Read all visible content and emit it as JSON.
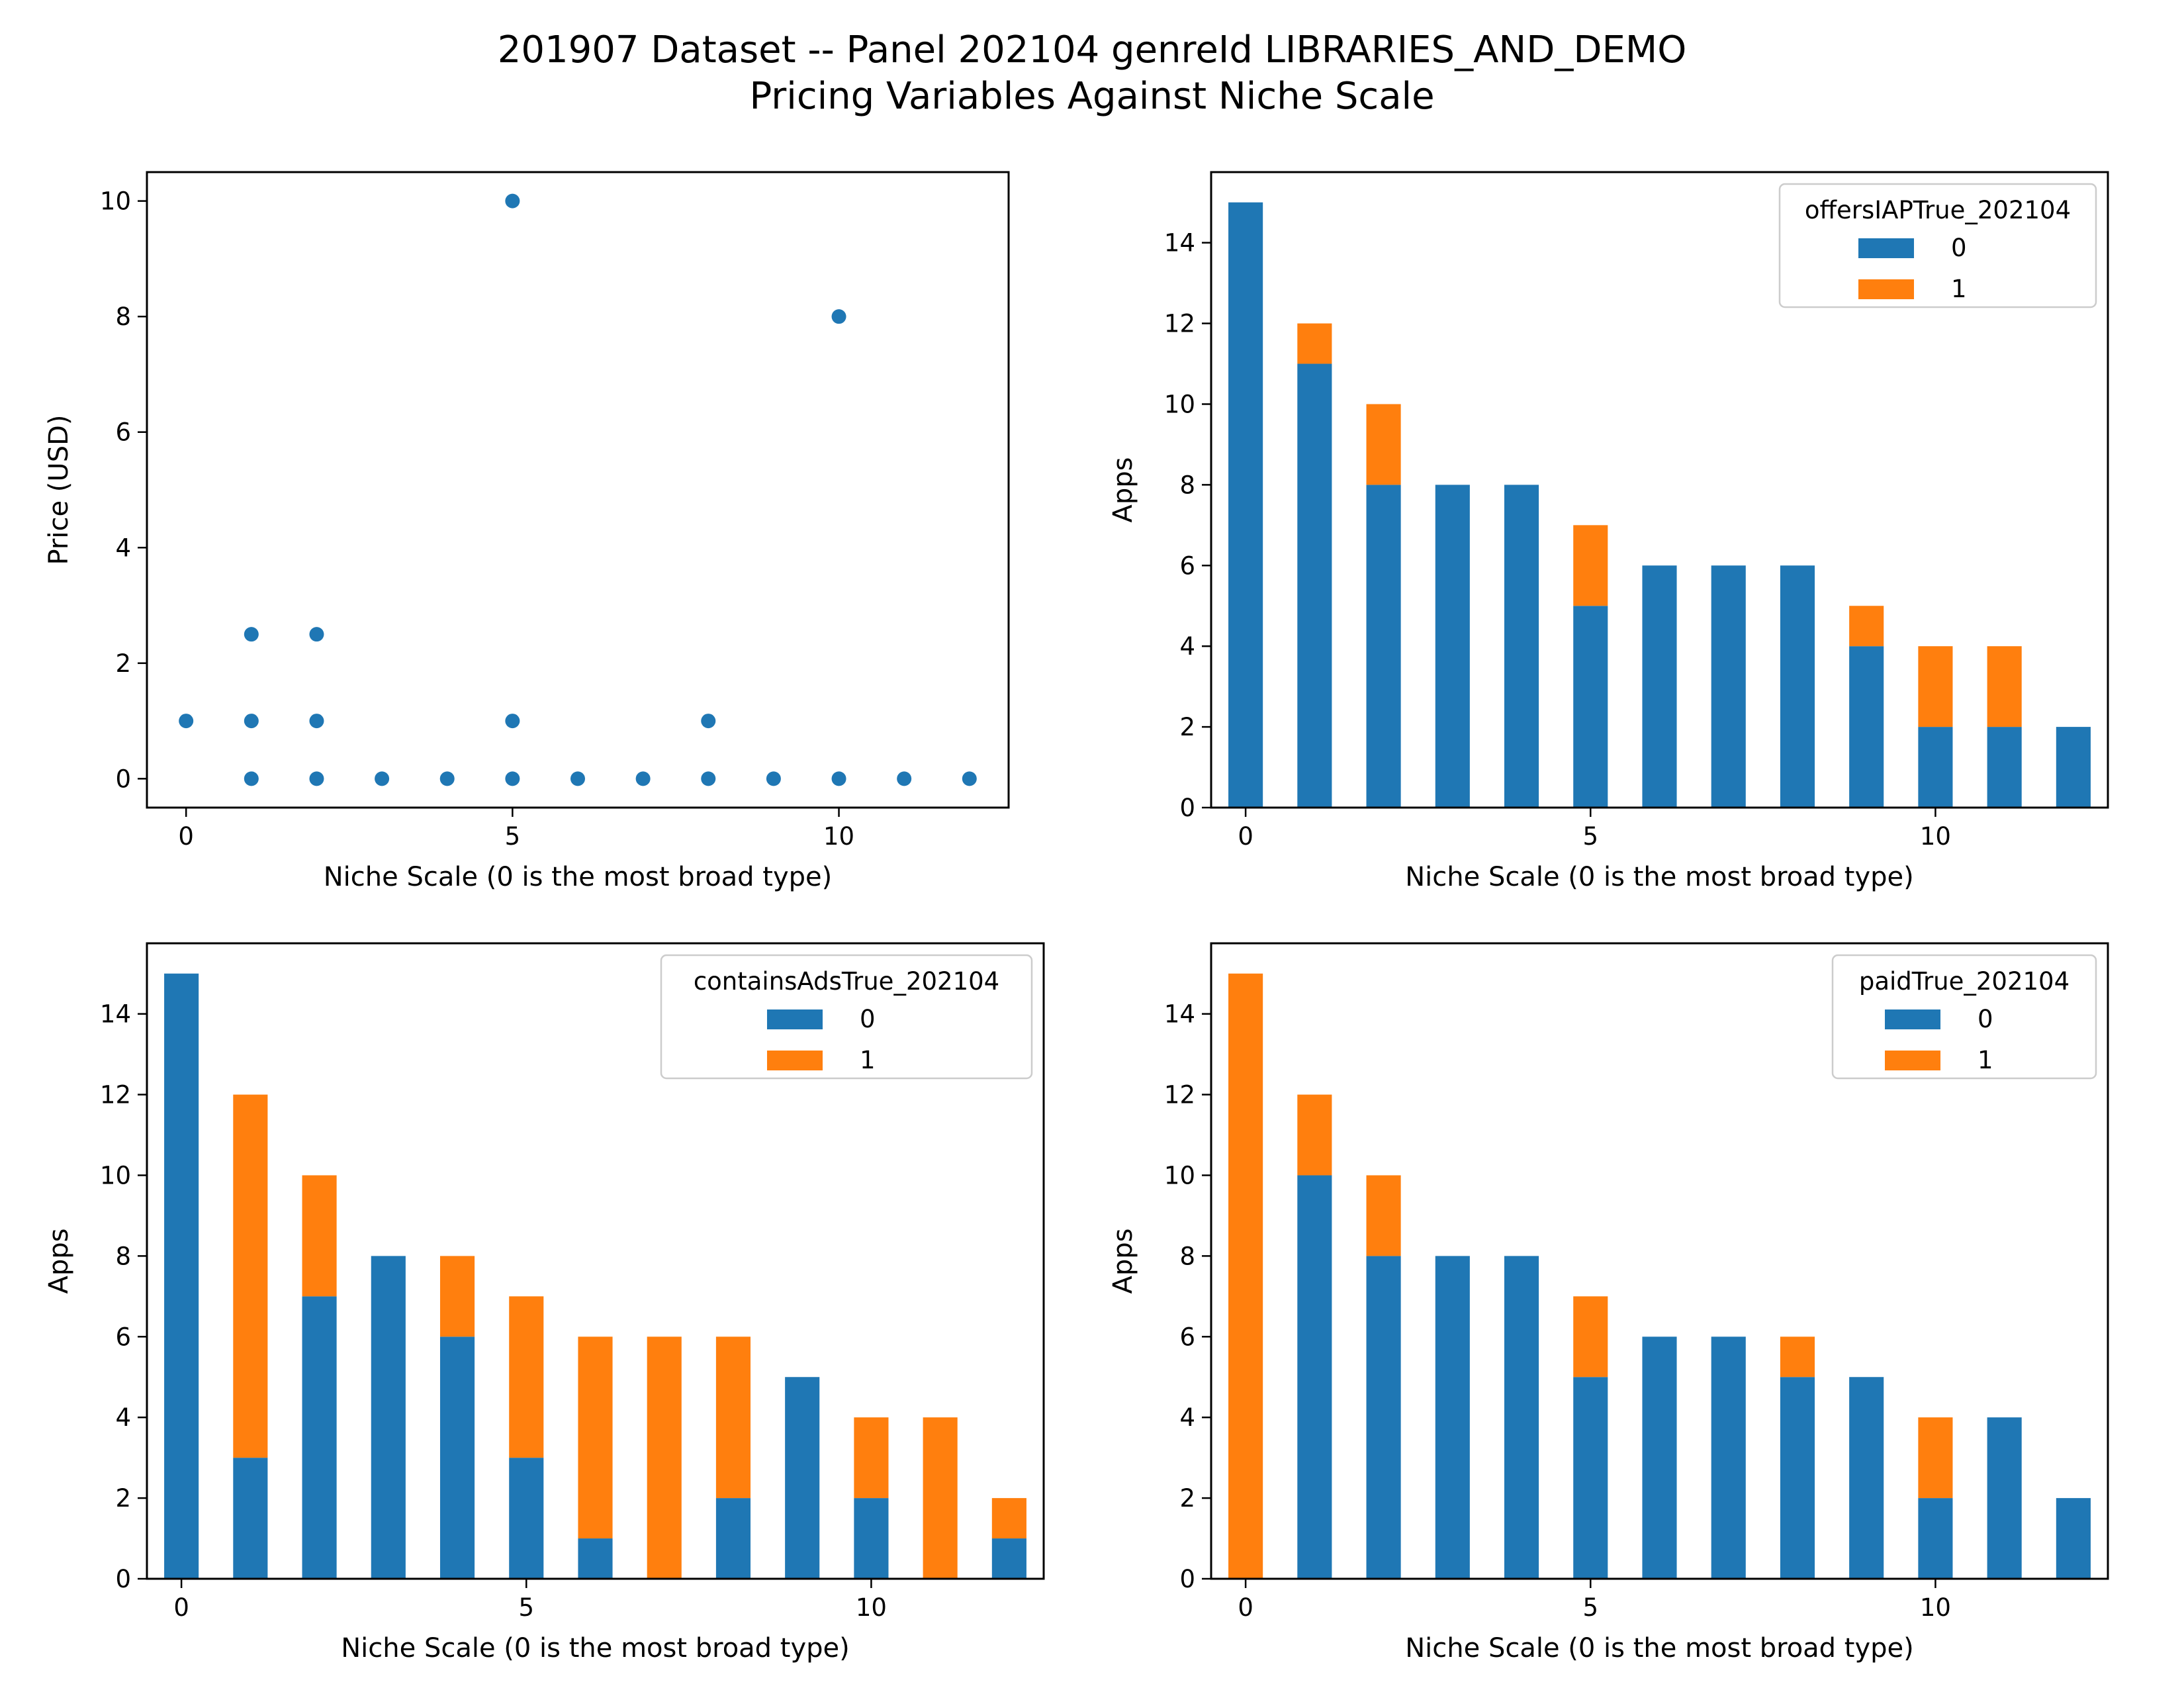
{
  "figure": {
    "title_line1": "201907 Dataset -- Panel 202104 genreId LIBRARIES_AND_DEMO",
    "title_line2": "Pricing Variables Against Niche Scale"
  },
  "colors": {
    "series0": "#1f77b4",
    "series1": "#ff7f0e"
  },
  "chart_data": [
    {
      "type": "scatter",
      "xlabel": "Niche Scale (0 is the most broad type)",
      "ylabel": "Price (USD)",
      "xlim": [
        -0.6,
        12.6
      ],
      "ylim": [
        -0.5,
        10.5
      ],
      "xticks": [
        0,
        5,
        10
      ],
      "yticks": [
        0,
        2,
        4,
        6,
        8,
        10
      ],
      "points": [
        {
          "x": 0,
          "y": 1
        },
        {
          "x": 1,
          "y": 2.5
        },
        {
          "x": 1,
          "y": 1
        },
        {
          "x": 1,
          "y": 0
        },
        {
          "x": 2,
          "y": 2.5
        },
        {
          "x": 2,
          "y": 1
        },
        {
          "x": 2,
          "y": 0
        },
        {
          "x": 3,
          "y": 0
        },
        {
          "x": 4,
          "y": 0
        },
        {
          "x": 5,
          "y": 10
        },
        {
          "x": 5,
          "y": 1
        },
        {
          "x": 5,
          "y": 0
        },
        {
          "x": 6,
          "y": 0
        },
        {
          "x": 7,
          "y": 0
        },
        {
          "x": 8,
          "y": 1
        },
        {
          "x": 8,
          "y": 0
        },
        {
          "x": 9,
          "y": 0
        },
        {
          "x": 10,
          "y": 8
        },
        {
          "x": 10,
          "y": 0
        },
        {
          "x": 11,
          "y": 0
        },
        {
          "x": 12,
          "y": 0
        }
      ]
    },
    {
      "type": "bar",
      "stacked": true,
      "xlabel": "Niche Scale (0 is the most broad type)",
      "ylabel": "Apps",
      "xlim": [
        -0.5,
        12.5
      ],
      "ylim": [
        0,
        15.75
      ],
      "xticks": [
        0,
        5,
        10
      ],
      "yticks": [
        0,
        2,
        4,
        6,
        8,
        10,
        12,
        14
      ],
      "categories": [
        0,
        1,
        2,
        3,
        4,
        5,
        6,
        7,
        8,
        9,
        10,
        11,
        12
      ],
      "legend_title": "offersIAPTrue_202104",
      "legend_loc": "upper right",
      "series": [
        {
          "name": "0",
          "values": [
            15,
            11,
            8,
            8,
            8,
            5,
            6,
            6,
            6,
            4,
            2,
            2,
            2
          ]
        },
        {
          "name": "1",
          "values": [
            0,
            1,
            2,
            0,
            0,
            2,
            0,
            0,
            0,
            1,
            2,
            2,
            0
          ]
        }
      ]
    },
    {
      "type": "bar",
      "stacked": true,
      "xlabel": "Niche Scale (0 is the most broad type)",
      "ylabel": "Apps",
      "xlim": [
        -0.5,
        12.5
      ],
      "ylim": [
        0,
        15.75
      ],
      "xticks": [
        0,
        5,
        10
      ],
      "yticks": [
        0,
        2,
        4,
        6,
        8,
        10,
        12,
        14
      ],
      "categories": [
        0,
        1,
        2,
        3,
        4,
        5,
        6,
        7,
        8,
        9,
        10,
        11,
        12
      ],
      "legend_title": "containsAdsTrue_202104",
      "legend_loc": "upper right",
      "series": [
        {
          "name": "0",
          "values": [
            15,
            3,
            7,
            8,
            6,
            3,
            1,
            0,
            2,
            5,
            2,
            0,
            1
          ]
        },
        {
          "name": "1",
          "values": [
            0,
            9,
            3,
            0,
            2,
            4,
            5,
            6,
            4,
            0,
            2,
            4,
            1
          ]
        }
      ]
    },
    {
      "type": "bar",
      "stacked": true,
      "xlabel": "Niche Scale (0 is the most broad type)",
      "ylabel": "Apps",
      "xlim": [
        -0.5,
        12.5
      ],
      "ylim": [
        0,
        15.75
      ],
      "xticks": [
        0,
        5,
        10
      ],
      "yticks": [
        0,
        2,
        4,
        6,
        8,
        10,
        12,
        14
      ],
      "categories": [
        0,
        1,
        2,
        3,
        4,
        5,
        6,
        7,
        8,
        9,
        10,
        11,
        12
      ],
      "legend_title": "paidTrue_202104",
      "legend_loc": "upper right",
      "series": [
        {
          "name": "0",
          "values": [
            0,
            10,
            8,
            8,
            8,
            5,
            6,
            6,
            5,
            5,
            2,
            4,
            2
          ]
        },
        {
          "name": "1",
          "values": [
            15,
            2,
            2,
            0,
            0,
            2,
            0,
            0,
            1,
            0,
            2,
            0,
            0
          ]
        }
      ]
    }
  ]
}
